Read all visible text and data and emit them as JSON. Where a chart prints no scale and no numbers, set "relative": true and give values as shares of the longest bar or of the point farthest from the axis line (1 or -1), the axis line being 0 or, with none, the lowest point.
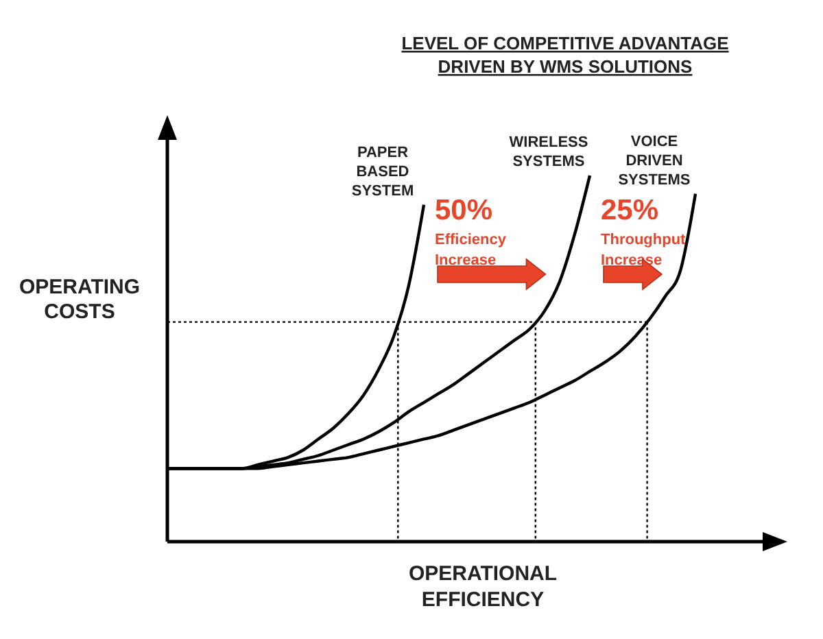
{
  "chart_data": {
    "type": "line",
    "relative": true,
    "title": "LEVEL OF COMPETITIVE ADVANTAGE DRIVEN BY WMS SOLUTIONS",
    "xlabel": "OPERATIONAL EFFICIENCY",
    "ylabel": "OPERATING COSTS",
    "categories": [
      null,
      null,
      null,
      null,
      null,
      null,
      null,
      null,
      null,
      null,
      null,
      null,
      null,
      null,
      null,
      null,
      null,
      null,
      null,
      null,
      null,
      null,
      null,
      null,
      null,
      null,
      null,
      null,
      null,
      null,
      null,
      null,
      null,
      null,
      null,
      null,
      null,
      null,
      null,
      null,
      null
    ],
    "series": [
      {
        "name": "PAPER BASED SYSTEM",
        "color": "#000000",
        "values": [
          0.2,
          0.2,
          0.2,
          0.2,
          0.2,
          0.2,
          0.21,
          0.22,
          0.23,
          0.25,
          0.28,
          0.31,
          0.35,
          0.4,
          0.47,
          0.56,
          0.7,
          0.92,
          null,
          null,
          null,
          null,
          null,
          null,
          null,
          null,
          null,
          null,
          null,
          null,
          null,
          null,
          null,
          null,
          null,
          null,
          null,
          null,
          null,
          null,
          null
        ]
      },
      {
        "name": "WIRELESS SYSTEMS",
        "color": "#000000",
        "values": [
          0.2,
          0.2,
          0.2,
          0.2,
          0.2,
          0.2,
          0.205,
          0.21,
          0.215,
          0.225,
          0.235,
          0.25,
          0.265,
          0.28,
          0.3,
          0.325,
          0.355,
          0.38,
          0.405,
          0.43,
          0.46,
          0.49,
          0.52,
          0.55,
          0.58,
          0.63,
          0.71,
          0.84,
          1.0,
          null,
          null,
          null,
          null,
          null,
          null,
          null,
          null,
          null,
          null,
          null,
          null
        ]
      },
      {
        "name": "VOICE DRIVEN SYSTEMS",
        "color": "#000000",
        "values": [
          0.2,
          0.2,
          0.2,
          0.2,
          0.2,
          0.2,
          0.2,
          0.205,
          0.21,
          0.215,
          0.22,
          0.225,
          0.23,
          0.24,
          0.25,
          0.26,
          0.27,
          0.28,
          0.29,
          0.305,
          0.32,
          0.335,
          0.35,
          0.365,
          0.38,
          0.4,
          0.42,
          0.44,
          0.465,
          0.49,
          0.52,
          0.56,
          0.61,
          0.67,
          0.74,
          0.95,
          null,
          null,
          null,
          null,
          null
        ]
      }
    ],
    "ref_lines": [
      {
        "axis": "y",
        "value": 0.6,
        "line_style": "dotted",
        "color": "#000000"
      }
    ],
    "annotations": [
      "50% Efficiency Increase",
      "25% Throughput Increase"
    ],
    "line_style": "solid"
  }
}
